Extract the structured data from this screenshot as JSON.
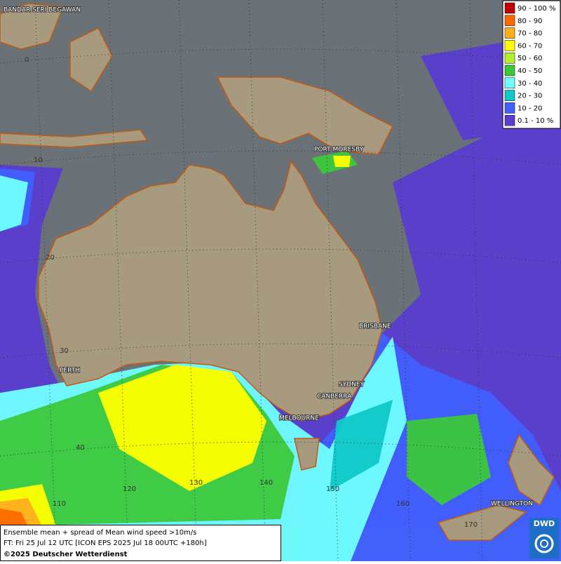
{
  "legend": {
    "items": [
      {
        "label": "90 - 100 %",
        "color": "#c00000"
      },
      {
        "label": "80 - 90",
        "color": "#ff6a00"
      },
      {
        "label": "70 - 80",
        "color": "#ffb020"
      },
      {
        "label": "60 - 70",
        "color": "#ffff00"
      },
      {
        "label": "50 - 60",
        "color": "#b4f030"
      },
      {
        "label": "40 - 50",
        "color": "#3cc83c"
      },
      {
        "label": "30 - 40",
        "color": "#70ffff"
      },
      {
        "label": "20 - 30",
        "color": "#10c8c8"
      },
      {
        "label": "10 - 20",
        "color": "#4060ff"
      },
      {
        "label": "0.1 - 10 %",
        "color": "#5a3cd0"
      }
    ]
  },
  "cities": [
    "BANDAR SERI BEGAWAN",
    "PORT MORESBY",
    "BRISBANE",
    "PERTH",
    "SYDNEY",
    "CANBERRA",
    "MELBOURNE",
    "WELLINGTON"
  ],
  "grid_labels": [
    0,
    10,
    20,
    30,
    40,
    110,
    120,
    130,
    140,
    150,
    160,
    170
  ],
  "footer": {
    "line1": "Ensemble mean + spread of Mean wind speed >10m/s",
    "line2": "FT: Fri 25 Jul 12 UTC [ICON EPS 2025 Jul 18 00UTC +180h]",
    "copyright": "©2025 Deutscher Wetterdienst"
  },
  "logo": "DWD"
}
